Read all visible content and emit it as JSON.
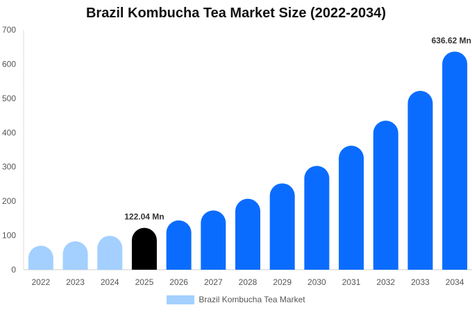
{
  "chart_data": {
    "type": "bar",
    "title": "Brazil Kombucha Tea Market Size (2022-2034)",
    "xlabel": "",
    "ylabel": "",
    "ylim": [
      0,
      700
    ],
    "yticks": [
      0,
      100,
      200,
      300,
      400,
      500,
      600,
      700
    ],
    "categories": [
      "2022",
      "2023",
      "2024",
      "2025",
      "2026",
      "2027",
      "2028",
      "2029",
      "2030",
      "2031",
      "2032",
      "2033",
      "2034"
    ],
    "series": [
      {
        "name": "Brazil Kombucha Tea Market",
        "values": [
          70,
          83,
          99,
          122.04,
          144,
          173,
          207,
          252,
          303,
          362,
          435,
          522,
          636.62
        ],
        "colors": [
          "#a3d0ff",
          "#a3d0ff",
          "#a3d0ff",
          "#000000",
          "#0a6cff",
          "#0a6cff",
          "#0a6cff",
          "#0a6cff",
          "#0a6cff",
          "#0a6cff",
          "#0a6cff",
          "#0a6cff",
          "#0a6cff"
        ]
      }
    ],
    "data_labels": [
      {
        "index": 3,
        "text": "122.04 Mn"
      },
      {
        "index": 12,
        "text": "636.62 Mn"
      }
    ],
    "grid": false,
    "legend": "bottom-center",
    "legend_color": "#a3d0ff"
  }
}
